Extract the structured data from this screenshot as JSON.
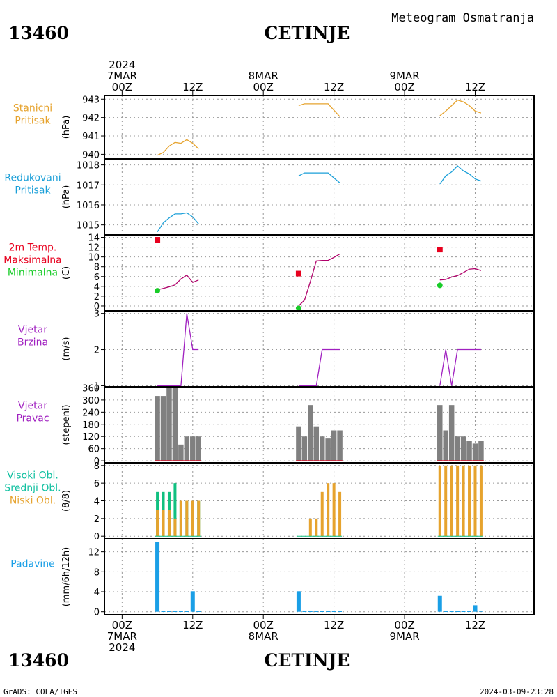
{
  "header": {
    "station_id": "13460",
    "station_name": "CETINJE",
    "title": "Meteogram Osmatranja"
  },
  "footer": {
    "credit": "GrADS: COLA/IGES",
    "timestamp": "2024-03-09-23:28"
  },
  "time_axis": {
    "top_labels": [
      {
        "t": 0,
        "lines": [
          "2024",
          "7MAR",
          "00Z"
        ]
      },
      {
        "t": 12,
        "lines": [
          "12Z"
        ]
      },
      {
        "t": 24,
        "lines": [
          "8MAR",
          "00Z"
        ]
      },
      {
        "t": 36,
        "lines": [
          "12Z"
        ]
      },
      {
        "t": 48,
        "lines": [
          "9MAR",
          "00Z"
        ]
      },
      {
        "t": 60,
        "lines": [
          "12Z"
        ]
      }
    ],
    "bottom_labels": [
      {
        "t": 0,
        "lines": [
          "00Z",
          "7MAR",
          "2024"
        ]
      },
      {
        "t": 12,
        "lines": [
          "12Z"
        ]
      },
      {
        "t": 24,
        "lines": [
          "00Z",
          "8MAR"
        ]
      },
      {
        "t": 36,
        "lines": [
          "12Z"
        ]
      },
      {
        "t": 48,
        "lines": [
          "00Z",
          "9MAR"
        ]
      },
      {
        "t": 60,
        "lines": [
          "12Z"
        ]
      }
    ],
    "xlim": [
      -3,
      70
    ],
    "unit": "hours since 2024-03-07 00Z",
    "grid": true
  },
  "colors": {
    "orange": "#e6a32e",
    "blue": "#1a9fd8",
    "red": "#e8001e",
    "green": "#18cc28",
    "magenta": "#b0006a",
    "purple": "#a020c0",
    "gray": "#808080",
    "teal": "#10c080",
    "light_blue": "#1a9fe6"
  },
  "chart_data": [
    {
      "id": "stanicni",
      "type": "line",
      "labels": [
        {
          "text": "Stanicni",
          "color": "#e6a32e"
        },
        {
          "text": "Pritisak",
          "color": "#e6a32e"
        }
      ],
      "ylabel": "(hPa)",
      "ylim": [
        939.75,
        943.2
      ],
      "yticks": [
        940,
        941,
        942,
        943
      ],
      "series": [
        {
          "color": "#e6a32e",
          "segments": [
            {
              "x": [
                6,
                7,
                8,
                9,
                10,
                11,
                12,
                13
              ],
              "y": [
                939.95,
                940.1,
                940.45,
                940.65,
                940.6,
                940.8,
                940.6,
                940.3
              ]
            },
            {
              "x": [
                30,
                31,
                32,
                33,
                34,
                35,
                36,
                37
              ],
              "y": [
                942.65,
                942.75,
                942.75,
                942.75,
                942.75,
                942.75,
                942.4,
                942.05
              ]
            },
            {
              "x": [
                54,
                55,
                56,
                57,
                58,
                59,
                60,
                61
              ],
              "y": [
                942.1,
                942.35,
                942.65,
                942.95,
                942.85,
                942.65,
                942.35,
                942.25
              ]
            }
          ]
        }
      ]
    },
    {
      "id": "redukovani",
      "type": "line",
      "labels": [
        {
          "text": "Redukovani",
          "color": "#1a9fd8"
        },
        {
          "text": "Pritisak",
          "color": "#1a9fd8"
        }
      ],
      "ylabel": "(hPa)",
      "ylim": [
        1014.5,
        1018.3
      ],
      "yticks": [
        1015,
        1016,
        1017,
        1018
      ],
      "series": [
        {
          "color": "#1a9fd8",
          "segments": [
            {
              "x": [
                6,
                7,
                8,
                9,
                10,
                11,
                12,
                13
              ],
              "y": [
                1014.65,
                1015.1,
                1015.35,
                1015.55,
                1015.55,
                1015.6,
                1015.4,
                1015.05
              ]
            },
            {
              "x": [
                30,
                31,
                32,
                33,
                34,
                35,
                36,
                37
              ],
              "y": [
                1017.45,
                1017.6,
                1017.6,
                1017.6,
                1017.6,
                1017.6,
                1017.35,
                1017.1
              ]
            },
            {
              "x": [
                54,
                55,
                56,
                57,
                58,
                59,
                60,
                61
              ],
              "y": [
                1017.05,
                1017.45,
                1017.65,
                1017.95,
                1017.7,
                1017.55,
                1017.3,
                1017.2
              ]
            }
          ]
        }
      ]
    },
    {
      "id": "temperatura",
      "type": "line",
      "labels": [
        {
          "text": "2m Temp.",
          "color": "#e8001e"
        },
        {
          "text": "Maksimalna",
          "color": "#e8001e"
        },
        {
          "text": "Minimalna",
          "color": "#18cc28"
        }
      ],
      "ylabel": "(C)",
      "ylim": [
        -1,
        14.5
      ],
      "yticks": [
        0,
        2,
        4,
        6,
        8,
        10,
        12,
        14
      ],
      "series": [
        {
          "color": "#b0006a",
          "segments": [
            {
              "x": [
                6,
                7,
                8,
                9,
                10,
                11,
                12,
                13
              ],
              "y": [
                3.3,
                3.6,
                3.9,
                4.3,
                5.5,
                6.3,
                4.8,
                5.3
              ]
            },
            {
              "x": [
                30,
                31,
                32,
                33,
                34,
                35,
                36,
                37
              ],
              "y": [
                0.0,
                1.2,
                5.0,
                9.2,
                9.3,
                9.3,
                9.9,
                10.6
              ]
            },
            {
              "x": [
                54,
                55,
                56,
                57,
                58,
                59,
                60,
                61
              ],
              "y": [
                5.3,
                5.4,
                5.9,
                6.2,
                6.8,
                7.5,
                7.6,
                7.2
              ]
            }
          ]
        }
      ],
      "max_markers": [
        {
          "x": 6,
          "y": 13.5
        },
        {
          "x": 30,
          "y": 6.6
        },
        {
          "x": 54,
          "y": 11.5
        }
      ],
      "min_markers": [
        {
          "x": 6,
          "y": 3.1
        },
        {
          "x": 30,
          "y": -0.5
        },
        {
          "x": 54,
          "y": 4.2
        }
      ]
    },
    {
      "id": "brzina",
      "type": "line",
      "labels": [
        {
          "text": "Vjetar",
          "color": "#a020c0"
        },
        {
          "text": "Brzina",
          "color": "#a020c0"
        }
      ],
      "ylabel": "(m/s)",
      "ylim": [
        0.97,
        3.07
      ],
      "yticks": [
        1,
        2,
        3
      ],
      "series": [
        {
          "color": "#a020c0",
          "segments": [
            {
              "x": [
                6,
                7,
                8,
                9,
                10,
                11,
                12,
                13
              ],
              "y": [
                1,
                1,
                1,
                1,
                1,
                3,
                2,
                2
              ]
            },
            {
              "x": [
                30,
                31,
                32,
                33,
                34,
                35,
                36,
                37
              ],
              "y": [
                1,
                1,
                1,
                1,
                2,
                2,
                2,
                2
              ]
            },
            {
              "x": [
                54,
                55,
                56,
                57,
                58,
                59,
                60,
                61
              ],
              "y": [
                1,
                2,
                1,
                2,
                2,
                2,
                2,
                2
              ]
            }
          ]
        }
      ]
    },
    {
      "id": "pravac",
      "type": "bar",
      "labels": [
        {
          "text": "Vjetar",
          "color": "#a020c0"
        },
        {
          "text": "Pravac",
          "color": "#a020c0"
        }
      ],
      "ylabel": "(stepeni)",
      "ylim": [
        -10,
        365
      ],
      "yticks": [
        0,
        60,
        120,
        180,
        240,
        300,
        360
      ],
      "bars": [
        {
          "x": [
            6,
            7,
            8,
            9,
            10,
            11,
            12,
            13
          ],
          "y": [
            320,
            320,
            360,
            360,
            80,
            120,
            120,
            120
          ]
        },
        {
          "x": [
            30,
            31,
            32,
            33,
            34,
            35,
            36,
            37
          ],
          "y": [
            170,
            120,
            275,
            170,
            120,
            110,
            150,
            150
          ]
        },
        {
          "x": [
            54,
            55,
            56,
            57,
            58,
            59,
            60,
            61
          ],
          "y": [
            275,
            150,
            275,
            120,
            120,
            100,
            85,
            100
          ]
        }
      ],
      "bar_color": "#808080",
      "baseline_color": "#e8001e"
    },
    {
      "id": "oblaci",
      "type": "bar",
      "labels": [
        {
          "text": "Visoki Obl.",
          "color": "#10c0a0"
        },
        {
          "text": "Srednji Obl.",
          "color": "#10c0a0"
        },
        {
          "text": "Niski Obl.",
          "color": "#e6a32e"
        }
      ],
      "ylabel": "(8/8)",
      "ylim": [
        -0.3,
        8.3
      ],
      "yticks": [
        0,
        2,
        4,
        6,
        8
      ],
      "high_middle": [
        {
          "x": [
            6,
            7,
            8,
            9,
            10,
            11,
            12,
            13
          ],
          "y": [
            5,
            5,
            5,
            6,
            4,
            4,
            4,
            4
          ]
        },
        {
          "x": [
            30,
            31,
            32,
            33,
            34,
            35,
            36,
            37
          ],
          "y": [
            0,
            0,
            0,
            0,
            0,
            0,
            0,
            0
          ]
        },
        {
          "x": [
            54,
            55,
            56,
            57,
            58,
            59,
            60,
            61
          ],
          "y": [
            0,
            0,
            0,
            0,
            0,
            0,
            0,
            0
          ]
        }
      ],
      "low": [
        {
          "x": [
            6,
            7,
            8,
            9,
            10,
            11,
            12,
            13
          ],
          "y": [
            3,
            3,
            3,
            2,
            4,
            4,
            4,
            4
          ]
        },
        {
          "x": [
            30,
            31,
            32,
            33,
            34,
            35,
            36,
            37
          ],
          "y": [
            0,
            0,
            2,
            2,
            5,
            6,
            6,
            5
          ]
        },
        {
          "x": [
            54,
            55,
            56,
            57,
            58,
            59,
            60,
            61
          ],
          "y": [
            8,
            8,
            8,
            8,
            8,
            8,
            8,
            8
          ]
        }
      ]
    },
    {
      "id": "padavine",
      "type": "bar",
      "labels": [
        {
          "text": "Padavine",
          "color": "#1a9fe6"
        }
      ],
      "ylabel": "(mm/6h/12h)",
      "ylim": [
        -0.6,
        14.6
      ],
      "yticks": [
        0,
        4,
        8,
        12
      ],
      "bars": [
        {
          "x": [
            6,
            7,
            8,
            9,
            10,
            11,
            12,
            13
          ],
          "y": [
            14,
            0.1,
            0.1,
            0.1,
            0.1,
            0.1,
            4.1,
            0.1
          ]
        },
        {
          "x": [
            30,
            31,
            32,
            33,
            34,
            35,
            36,
            37
          ],
          "y": [
            4.1,
            0.1,
            0.1,
            0.1,
            0.1,
            0.1,
            0.1,
            0.1
          ]
        },
        {
          "x": [
            54,
            55,
            56,
            57,
            58,
            59,
            60,
            61
          ],
          "y": [
            3.2,
            0.1,
            0.1,
            0.1,
            0.1,
            0.1,
            1.3,
            0.2
          ]
        }
      ],
      "bar_color": "#1a9fe6"
    }
  ]
}
